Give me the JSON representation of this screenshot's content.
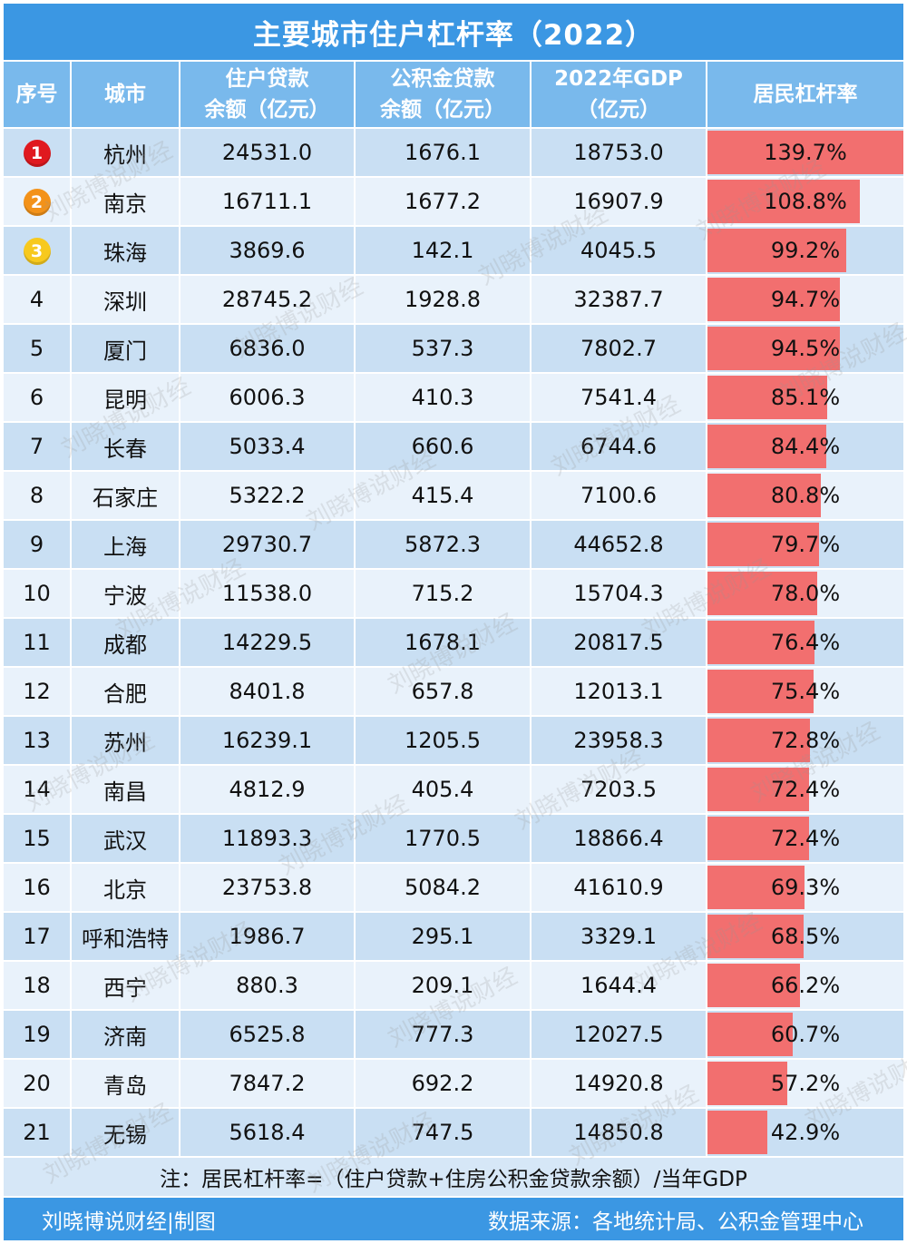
{
  "title": "主要城市住户杠杆率（2022）",
  "headers": {
    "rank": "序号",
    "city": "城市",
    "loan_line1": "住户贷款",
    "loan_line2": "余额（亿元）",
    "fund_line1": "公积金贷款",
    "fund_line2": "余额（亿元）",
    "gdp_line1": "2022年GDP",
    "gdp_line2": "（亿元）",
    "rate": "居民杠杆率"
  },
  "colors": {
    "header_bg": "#3b97e3",
    "column_header_bg": "#79b9ec",
    "row_dark": "#c9dff3",
    "row_light": "#e9f2fb",
    "bar": "#f26f6f",
    "medal_1": "#e0191f",
    "medal_2": "#f39219",
    "medal_3": "#f7c91e"
  },
  "chart_data": {
    "type": "table",
    "title": "主要城市住户杠杆率（2022）",
    "columns": [
      "序号",
      "城市",
      "住户贷款余额（亿元）",
      "公积金贷款余额（亿元）",
      "2022年GDP（亿元）",
      "居民杠杆率"
    ],
    "rows": [
      {
        "rank": "1",
        "city": "杭州",
        "loan": "24531.0",
        "fund": "1676.1",
        "gdp": "18753.0",
        "rate": "139.7%",
        "rate_value": 139.7,
        "medal": true
      },
      {
        "rank": "2",
        "city": "南京",
        "loan": "16711.1",
        "fund": "1677.2",
        "gdp": "16907.9",
        "rate": "108.8%",
        "rate_value": 108.8,
        "medal": true
      },
      {
        "rank": "3",
        "city": "珠海",
        "loan": "3869.6",
        "fund": "142.1",
        "gdp": "4045.5",
        "rate": "99.2%",
        "rate_value": 99.2,
        "medal": true
      },
      {
        "rank": "4",
        "city": "深圳",
        "loan": "28745.2",
        "fund": "1928.8",
        "gdp": "32387.7",
        "rate": "94.7%",
        "rate_value": 94.7
      },
      {
        "rank": "5",
        "city": "厦门",
        "loan": "6836.0",
        "fund": "537.3",
        "gdp": "7802.7",
        "rate": "94.5%",
        "rate_value": 94.5
      },
      {
        "rank": "6",
        "city": "昆明",
        "loan": "6006.3",
        "fund": "410.3",
        "gdp": "7541.4",
        "rate": "85.1%",
        "rate_value": 85.1
      },
      {
        "rank": "7",
        "city": "长春",
        "loan": "5033.4",
        "fund": "660.6",
        "gdp": "6744.6",
        "rate": "84.4%",
        "rate_value": 84.4
      },
      {
        "rank": "8",
        "city": "石家庄",
        "loan": "5322.2",
        "fund": "415.4",
        "gdp": "7100.6",
        "rate": "80.8%",
        "rate_value": 80.8
      },
      {
        "rank": "9",
        "city": "上海",
        "loan": "29730.7",
        "fund": "5872.3",
        "gdp": "44652.8",
        "rate": "79.7%",
        "rate_value": 79.7
      },
      {
        "rank": "10",
        "city": "宁波",
        "loan": "11538.0",
        "fund": "715.2",
        "gdp": "15704.3",
        "rate": "78.0%",
        "rate_value": 78.0
      },
      {
        "rank": "11",
        "city": "成都",
        "loan": "14229.5",
        "fund": "1678.1",
        "gdp": "20817.5",
        "rate": "76.4%",
        "rate_value": 76.4
      },
      {
        "rank": "12",
        "city": "合肥",
        "loan": "8401.8",
        "fund": "657.8",
        "gdp": "12013.1",
        "rate": "75.4%",
        "rate_value": 75.4
      },
      {
        "rank": "13",
        "city": "苏州",
        "loan": "16239.1",
        "fund": "1205.5",
        "gdp": "23958.3",
        "rate": "72.8%",
        "rate_value": 72.8
      },
      {
        "rank": "14",
        "city": "南昌",
        "loan": "4812.9",
        "fund": "405.4",
        "gdp": "7203.5",
        "rate": "72.4%",
        "rate_value": 72.4
      },
      {
        "rank": "15",
        "city": "武汉",
        "loan": "11893.3",
        "fund": "1770.5",
        "gdp": "18866.4",
        "rate": "72.4%",
        "rate_value": 72.4
      },
      {
        "rank": "16",
        "city": "北京",
        "loan": "23753.8",
        "fund": "5084.2",
        "gdp": "41610.9",
        "rate": "69.3%",
        "rate_value": 69.3
      },
      {
        "rank": "17",
        "city": "呼和浩特",
        "loan": "1986.7",
        "fund": "295.1",
        "gdp": "3329.1",
        "rate": "68.5%",
        "rate_value": 68.5
      },
      {
        "rank": "18",
        "city": "西宁",
        "loan": "880.3",
        "fund": "209.1",
        "gdp": "1644.4",
        "rate": "66.2%",
        "rate_value": 66.2
      },
      {
        "rank": "19",
        "city": "济南",
        "loan": "6525.8",
        "fund": "777.3",
        "gdp": "12027.5",
        "rate": "60.7%",
        "rate_value": 60.7
      },
      {
        "rank": "20",
        "city": "青岛",
        "loan": "7847.2",
        "fund": "692.2",
        "gdp": "14920.8",
        "rate": "57.2%",
        "rate_value": 57.2
      },
      {
        "rank": "21",
        "city": "无锡",
        "loan": "5618.4",
        "fund": "747.5",
        "gdp": "14850.8",
        "rate": "42.9%",
        "rate_value": 42.9
      }
    ]
  },
  "note": "注：居民杠杆率=（住户贷款+住房公积金贷款余额）/当年GDP",
  "footer": {
    "left": "刘晓博说财经|制图",
    "right": "数据来源：各地统计局、公积金管理中心"
  },
  "watermark": "刘晓博说财经"
}
